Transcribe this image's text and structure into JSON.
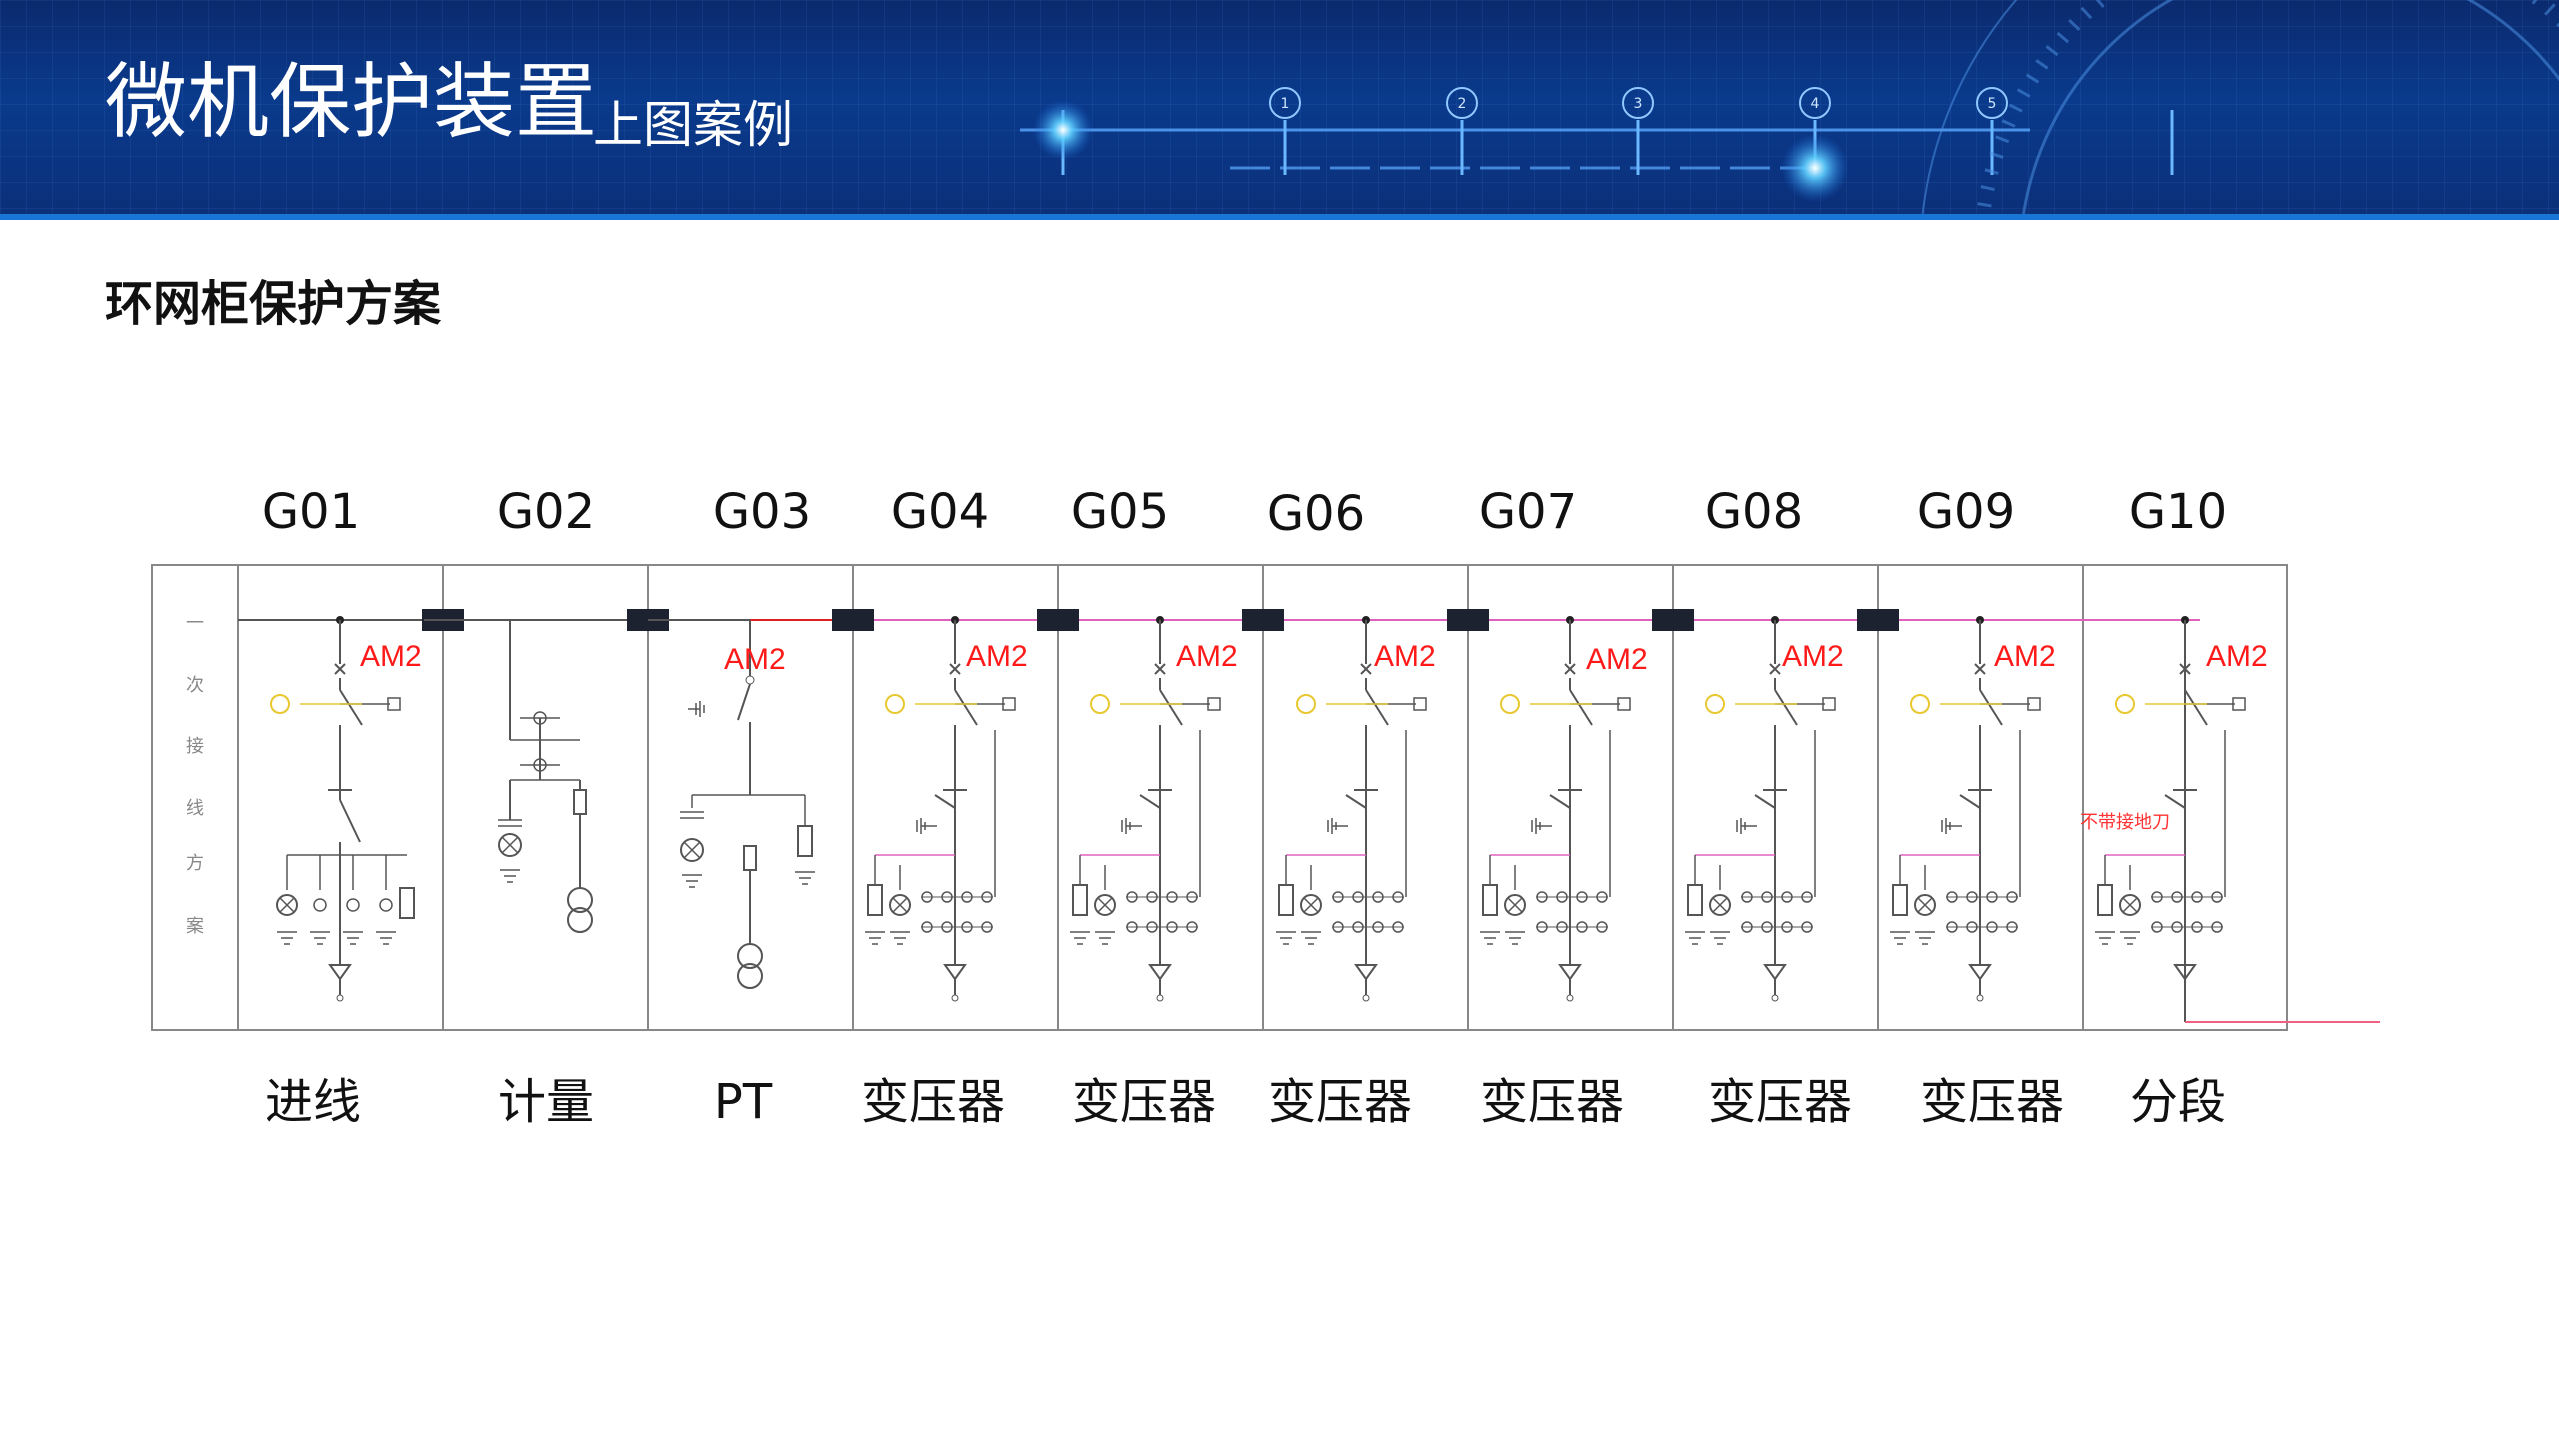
{
  "header": {
    "title": "微机保护装置",
    "subtitle": "上图案例",
    "dial_numbers": [
      "1",
      "2",
      "3",
      "4",
      "5"
    ]
  },
  "section_title": "环网柜保护方案",
  "diagram": {
    "side_label": [
      "一",
      "次",
      "接",
      "线",
      "方",
      "案"
    ],
    "cabinets": [
      {
        "code": "G01",
        "name": "进线",
        "device": "AM2"
      },
      {
        "code": "G02",
        "name": "计量",
        "device": ""
      },
      {
        "code": "G03",
        "name": "PT",
        "device": "AM2"
      },
      {
        "code": "G04",
        "name": "变压器",
        "device": "AM2"
      },
      {
        "code": "G05",
        "name": "变压器",
        "device": "AM2"
      },
      {
        "code": "G06",
        "name": "变压器",
        "device": "AM2"
      },
      {
        "code": "G07",
        "name": "变压器",
        "device": "AM2"
      },
      {
        "code": "G08",
        "name": "变压器",
        "device": "AM2"
      },
      {
        "code": "G09",
        "name": "变压器",
        "device": "AM2"
      },
      {
        "code": "G10",
        "name": "分段",
        "device": "AM2"
      }
    ],
    "note_g10": "不带接地刀",
    "colors": {
      "line": "#555555",
      "label_red": "#ff1a1a",
      "bus_pink": "#e060c0",
      "bus_red": "#e02020",
      "indicator_yellow": "#e8c830",
      "header_blue": "#0a3a8c"
    }
  }
}
